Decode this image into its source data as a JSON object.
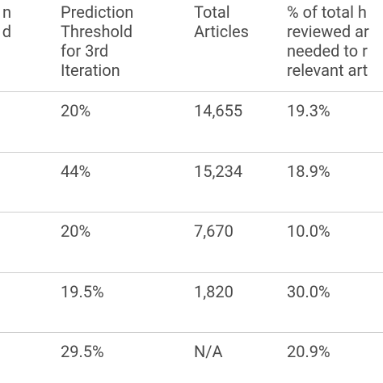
{
  "table": {
    "header": [
      [
        "n",
        "d"
      ],
      [
        "Prediction",
        "Threshold",
        "for 3rd",
        "Iteration"
      ],
      [
        "Total",
        "Articles"
      ],
      [
        "% of total h",
        "reviewed ar",
        "needed to r",
        "relevant art"
      ]
    ],
    "rows": [
      [
        "20%",
        "14,655",
        "19.3%"
      ],
      [
        "44%",
        "15,234",
        "18.9%"
      ],
      [
        "20%",
        "7,670",
        "10.0%"
      ],
      [
        "19.5%",
        "1,820",
        "30.0%"
      ],
      [
        "29.5%",
        "N/A",
        "20.9%"
      ]
    ]
  }
}
